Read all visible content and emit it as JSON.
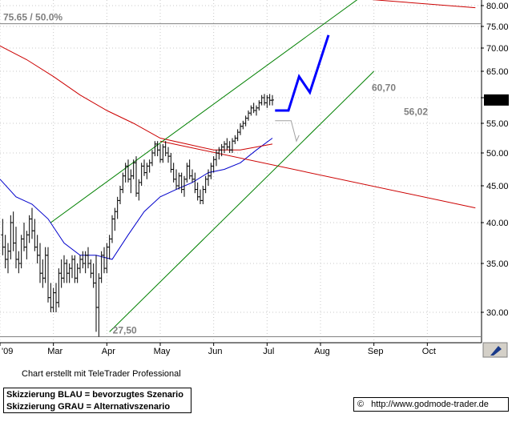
{
  "chart_data": {
    "type": "ohlc",
    "title": "",
    "y_axis_position": "right",
    "ylim": [
      27,
      81
    ],
    "y_ticks": [
      30,
      35,
      40,
      45,
      50,
      55,
      60,
      65,
      70,
      75,
      80
    ],
    "y_tick_labels": [
      "30.00",
      "35.00",
      "40.00",
      "45.00",
      "50.00",
      "55.00",
      "60.00",
      "65.00",
      "70.00",
      "75.00",
      "80.00"
    ],
    "x_tick_labels": [
      "'09",
      "Mar",
      "Apr",
      "May",
      "Jun",
      "Jul",
      "Aug",
      "Sep",
      "Oct"
    ],
    "x_tick_positions": [
      2.0,
      3.0,
      4.0,
      5.0,
      6.0,
      7.0,
      8.0,
      9.0,
      10.0
    ],
    "xlim": [
      2.0,
      11.0
    ],
    "last_price_label": "59.55",
    "last_price": 59.55,
    "annotations": [
      {
        "text": "60,70",
        "x": 8.9,
        "y": 60.7,
        "color": "#808080"
      },
      {
        "text": "56,02",
        "x": 9.5,
        "y": 56.02,
        "color": "#808080"
      },
      {
        "text": "27,50",
        "x": 4.05,
        "y": 27.5,
        "color": "#808080"
      },
      {
        "text": "75.65 / 50.0%",
        "x": 2.0,
        "y": 75.65,
        "color": "#808080"
      }
    ],
    "horizontal_lines": [
      {
        "y": 75.65,
        "color": "#808080"
      },
      {
        "y": 27.5,
        "color": "#808080"
      }
    ],
    "series": [
      {
        "kind": "ohlc",
        "color": "#000000",
        "ohlc": [
          [
            2.05,
            38.5,
            40.5,
            36.0,
            37.0
          ],
          [
            2.1,
            37.0,
            38.5,
            34.5,
            35.5
          ],
          [
            2.15,
            35.5,
            37.5,
            34.0,
            36.5
          ],
          [
            2.2,
            36.5,
            41.0,
            35.5,
            40.0
          ],
          [
            2.25,
            40.0,
            41.5,
            36.5,
            37.5
          ],
          [
            2.3,
            37.5,
            39.5,
            34.5,
            35.5
          ],
          [
            2.35,
            35.5,
            36.5,
            34.0,
            35.0
          ],
          [
            2.4,
            35.0,
            38.5,
            34.5,
            38.0
          ],
          [
            2.45,
            38.0,
            40.0,
            36.5,
            37.0
          ],
          [
            2.5,
            37.0,
            39.0,
            35.5,
            38.5
          ],
          [
            2.55,
            38.5,
            41.0,
            37.5,
            40.5
          ],
          [
            2.6,
            40.5,
            42.0,
            38.0,
            39.0
          ],
          [
            2.65,
            39.0,
            40.5,
            36.5,
            37.0
          ],
          [
            2.7,
            37.0,
            38.5,
            35.0,
            36.0
          ],
          [
            2.75,
            36.0,
            37.5,
            33.0,
            34.0
          ],
          [
            2.8,
            34.0,
            35.5,
            32.5,
            33.5
          ],
          [
            2.85,
            33.5,
            37.0,
            33.0,
            36.0
          ],
          [
            2.9,
            36.0,
            37.0,
            31.0,
            31.5
          ],
          [
            2.95,
            31.5,
            33.0,
            30.0,
            30.5
          ],
          [
            3.0,
            30.5,
            32.5,
            30.0,
            32.0
          ],
          [
            3.05,
            32.0,
            33.0,
            30.0,
            31.0
          ],
          [
            3.1,
            31.0,
            34.5,
            30.5,
            34.0
          ],
          [
            3.15,
            34.0,
            35.5,
            32.5,
            33.5
          ],
          [
            3.2,
            33.5,
            36.0,
            33.0,
            35.0
          ],
          [
            3.25,
            35.0,
            35.5,
            33.0,
            34.0
          ],
          [
            3.3,
            34.0,
            35.0,
            33.0,
            34.5
          ],
          [
            3.35,
            34.5,
            36.0,
            33.5,
            35.5
          ],
          [
            3.4,
            35.5,
            36.0,
            33.0,
            33.5
          ],
          [
            3.45,
            33.5,
            35.0,
            33.0,
            34.5
          ],
          [
            3.5,
            34.5,
            36.0,
            34.0,
            35.5
          ],
          [
            3.55,
            35.5,
            36.5,
            34.5,
            35.0
          ],
          [
            3.6,
            35.0,
            36.5,
            34.0,
            36.0
          ],
          [
            3.65,
            36.0,
            37.0,
            34.5,
            35.0
          ],
          [
            3.7,
            35.0,
            35.5,
            33.5,
            34.0
          ],
          [
            3.75,
            34.0,
            35.0,
            32.5,
            33.0
          ],
          [
            3.8,
            33.0,
            36.0,
            28.0,
            30.5
          ],
          [
            3.85,
            30.5,
            34.0,
            27.5,
            33.5
          ],
          [
            3.9,
            33.5,
            36.5,
            33.0,
            36.0
          ],
          [
            3.95,
            36.0,
            37.0,
            34.0,
            34.5
          ],
          [
            4.0,
            34.5,
            37.5,
            34.0,
            37.0
          ],
          [
            4.05,
            37.0,
            38.5,
            35.5,
            38.0
          ],
          [
            4.1,
            38.0,
            41.0,
            37.5,
            40.5
          ],
          [
            4.15,
            40.5,
            42.0,
            39.0,
            41.5
          ],
          [
            4.2,
            41.5,
            43.5,
            40.5,
            43.0
          ],
          [
            4.25,
            43.0,
            45.0,
            42.5,
            44.5
          ],
          [
            4.3,
            44.5,
            47.0,
            44.0,
            46.5
          ],
          [
            4.35,
            46.5,
            48.5,
            45.5,
            48.0
          ],
          [
            4.4,
            48.0,
            49.0,
            45.5,
            46.0
          ],
          [
            4.45,
            46.0,
            47.5,
            44.0,
            46.5
          ],
          [
            4.5,
            46.5,
            49.0,
            46.0,
            48.5
          ],
          [
            4.55,
            48.5,
            49.5,
            43.5,
            44.0
          ],
          [
            4.6,
            44.0,
            46.0,
            43.0,
            45.5
          ],
          [
            4.65,
            45.5,
            48.5,
            45.0,
            48.0
          ],
          [
            4.7,
            48.0,
            49.0,
            46.5,
            47.0
          ],
          [
            4.75,
            47.0,
            48.5,
            46.0,
            48.0
          ],
          [
            4.8,
            48.0,
            49.0,
            47.0,
            48.5
          ],
          [
            4.85,
            48.5,
            50.5,
            48.0,
            50.0
          ],
          [
            4.9,
            50.0,
            52.0,
            49.5,
            51.5
          ],
          [
            4.95,
            51.5,
            52.0,
            49.5,
            50.5
          ],
          [
            5.0,
            50.5,
            51.5,
            48.5,
            49.0
          ],
          [
            5.05,
            49.0,
            51.5,
            48.5,
            51.0
          ],
          [
            5.1,
            51.0,
            52.0,
            49.5,
            50.0
          ],
          [
            5.15,
            50.0,
            51.0,
            48.5,
            49.5
          ],
          [
            5.2,
            49.5,
            50.0,
            47.0,
            47.5
          ],
          [
            5.25,
            47.5,
            48.5,
            45.5,
            46.0
          ],
          [
            5.3,
            46.0,
            47.5,
            44.5,
            45.0
          ],
          [
            5.35,
            45.0,
            47.0,
            44.5,
            46.5
          ],
          [
            5.4,
            46.5,
            47.0,
            44.0,
            44.5
          ],
          [
            5.45,
            44.5,
            46.5,
            43.5,
            46.0
          ],
          [
            5.5,
            46.0,
            48.5,
            45.5,
            48.0
          ],
          [
            5.55,
            48.0,
            49.0,
            46.0,
            46.5
          ],
          [
            5.6,
            46.5,
            47.5,
            45.5,
            46.0
          ],
          [
            5.65,
            46.0,
            47.0,
            44.0,
            44.5
          ],
          [
            5.7,
            44.5,
            45.5,
            43.0,
            43.5
          ],
          [
            5.75,
            43.5,
            44.5,
            42.5,
            43.0
          ],
          [
            5.8,
            43.0,
            45.0,
            42.5,
            44.5
          ],
          [
            5.85,
            44.5,
            46.5,
            44.0,
            46.0
          ],
          [
            5.9,
            46.0,
            47.5,
            45.0,
            46.5
          ],
          [
            5.95,
            46.5,
            48.5,
            46.0,
            48.0
          ],
          [
            6.0,
            48.0,
            49.5,
            47.0,
            49.0
          ],
          [
            6.05,
            49.0,
            50.5,
            48.0,
            50.0
          ],
          [
            6.1,
            50.0,
            51.0,
            49.0,
            50.5
          ],
          [
            6.15,
            50.5,
            51.5,
            49.5,
            51.0
          ],
          [
            6.2,
            51.0,
            52.0,
            50.0,
            51.5
          ],
          [
            6.25,
            51.5,
            52.5,
            50.5,
            51.0
          ],
          [
            6.3,
            51.0,
            52.0,
            50.0,
            50.5
          ],
          [
            6.35,
            50.5,
            52.5,
            50.0,
            52.0
          ],
          [
            6.4,
            52.0,
            53.0,
            51.5,
            52.5
          ],
          [
            6.45,
            52.5,
            54.0,
            52.0,
            53.5
          ],
          [
            6.5,
            53.5,
            55.0,
            53.0,
            54.5
          ],
          [
            6.55,
            54.5,
            55.5,
            54.0,
            55.0
          ],
          [
            6.6,
            55.0,
            56.5,
            54.5,
            56.0
          ],
          [
            6.65,
            56.0,
            57.5,
            55.5,
            57.0
          ],
          [
            6.7,
            57.0,
            58.5,
            56.5,
            58.0
          ],
          [
            6.75,
            58.0,
            59.0,
            57.0,
            57.5
          ],
          [
            6.8,
            57.5,
            58.5,
            56.5,
            58.0
          ],
          [
            6.85,
            58.0,
            59.5,
            57.5,
            59.0
          ],
          [
            6.9,
            59.0,
            60.5,
            58.5,
            60.0
          ],
          [
            6.95,
            60.0,
            60.7,
            58.5,
            59.0
          ],
          [
            7.0,
            59.0,
            60.5,
            58.0,
            60.0
          ],
          [
            7.05,
            60.0,
            60.7,
            58.5,
            59.5
          ],
          [
            7.1,
            59.5,
            60.5,
            58.5,
            59.55
          ]
        ]
      },
      {
        "name": "",
        "kind": "line",
        "color": "#0000cc",
        "x": [
          2.0,
          2.3,
          2.6,
          2.9,
          3.2,
          3.5,
          3.8,
          4.1,
          4.4,
          4.7,
          5.0,
          5.3,
          5.6,
          5.9,
          6.2,
          6.5,
          6.8,
          7.1
        ],
        "y": [
          46.0,
          43.5,
          42.5,
          40.5,
          37.5,
          36.0,
          36.0,
          35.5,
          38.5,
          41.5,
          43.5,
          44.5,
          45.5,
          47.0,
          47.5,
          48.5,
          50.5,
          52.5
        ]
      },
      {
        "name": "",
        "kind": "line",
        "color": "#cc0000",
        "x": [
          2.0,
          2.5,
          3.0,
          3.5,
          4.0,
          4.5,
          5.0,
          5.5,
          6.0,
          6.5,
          7.1
        ],
        "y": [
          70.5,
          67.5,
          64.0,
          60.5,
          57.5,
          55.0,
          52.5,
          51.5,
          50.5,
          50.5,
          51.5
        ]
      },
      {
        "name": "",
        "kind": "line",
        "color": "#cc0000",
        "x": [
          5.0,
          10.9
        ],
        "y": [
          52.0,
          42.0
        ]
      },
      {
        "name": "",
        "kind": "line",
        "color": "#cc0000",
        "x": [
          8.9,
          10.9
        ],
        "y": [
          81.5,
          79.5
        ]
      },
      {
        "name": "",
        "kind": "line",
        "color": "#008000",
        "x": [
          4.05,
          9.0
        ],
        "y": [
          28.0,
          65.0
        ]
      },
      {
        "name": "",
        "kind": "line",
        "color": "#008000",
        "x": [
          2.95,
          8.75
        ],
        "y": [
          40.0,
          82.0
        ]
      },
      {
        "name": "",
        "kind": "line",
        "color": "#0000ff",
        "x": [
          7.15,
          7.4,
          7.6,
          7.8,
          8.15
        ],
        "y": [
          57.5,
          57.5,
          64.0,
          61.0,
          73.0
        ]
      },
      {
        "name": "",
        "kind": "line",
        "color": "#a0a0a0",
        "x": [
          7.15,
          7.45,
          7.55,
          7.6
        ],
        "y": [
          55.5,
          55.5,
          52.0,
          53.0
        ]
      }
    ]
  },
  "footer": {
    "credit": "Chart erstellt mit TeleTrader Professional",
    "legend_blue": "Skizzierung BLAU = bevorzugtes Szenario",
    "legend_gray": "Skizzierung GRAU = Alternativszenario",
    "url": "http://www.godmode-trader.de",
    "copyright_symbol": "©"
  }
}
